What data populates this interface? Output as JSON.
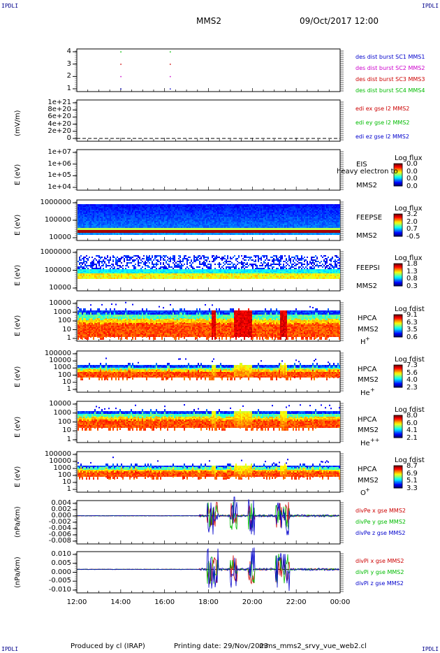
{
  "corners": {
    "tl": "IPDLI",
    "tr": "IPDLI",
    "bl": "IPDLI",
    "br": "IPDLI"
  },
  "header": {
    "spacecraft": "MMS2",
    "date": "09/Oct/2017 12:00"
  },
  "footer": {
    "produced": "Produced by cl (IRAP)",
    "printing": "Printing date: 29/Nov/2023",
    "file": "mms_mms2_srvy_vue_web2.cl"
  },
  "colors": {
    "red": "#cc0000",
    "green": "#00bb00",
    "blue": "#0000cc",
    "magenta": "#cc00cc"
  },
  "chart_data": [
    {
      "type": "scatter",
      "id": "des-burst",
      "x_ticks": [
        "12:00",
        "14:00",
        "16:00",
        "18:00",
        "20:00",
        "22:00",
        "00:00"
      ],
      "y_ticks": [
        "4",
        "3",
        "2",
        "1"
      ],
      "series": [
        {
          "name": "des dist burst SC1 MMS1",
          "color": "#0000cc"
        },
        {
          "name": "des dist burst SC2 MMS2",
          "color": "#cc00cc"
        },
        {
          "name": "des dist burst SC3 MMS3",
          "color": "#cc0000"
        },
        {
          "name": "des dist burst SC4 MMS4",
          "color": "#00bb00"
        }
      ],
      "points": [
        {
          "t": 14.0,
          "sc": 4
        },
        {
          "t": 14.0,
          "sc": 3
        },
        {
          "t": 14.0,
          "sc": 2
        },
        {
          "t": 14.0,
          "sc": 1
        },
        {
          "t": 16.25,
          "sc": 4
        },
        {
          "t": 16.25,
          "sc": 3
        },
        {
          "t": 16.25,
          "sc": 2
        },
        {
          "t": 16.25,
          "sc": 1
        }
      ]
    },
    {
      "type": "line",
      "id": "edi",
      "ylabel": "(mV/m)",
      "y_ticks": [
        "1e+21",
        "8e+20",
        "6e+20",
        "4e+20",
        "2e+20",
        "0"
      ],
      "series": [
        {
          "name": "edi ex gse l2 MMS2",
          "color": "#cc0000"
        },
        {
          "name": "edi ey gse l2 MMS2",
          "color": "#00bb00"
        },
        {
          "name": "edi ez gse l2 MMS2",
          "color": "#0000cc"
        }
      ]
    },
    {
      "type": "heatmap",
      "id": "eis",
      "ylabel": "E (eV)",
      "y_ticks": [
        "1e+07",
        "1e+06",
        "1e+05",
        "1e+04"
      ],
      "right_labels": [
        "EIS",
        "heavy electron to",
        "MMS2"
      ],
      "cbar": {
        "title": "Log flux",
        "ticks": [
          "0.0",
          "0.0",
          "0.0",
          "0.0"
        ]
      }
    },
    {
      "type": "heatmap",
      "id": "feepse",
      "ylabel": "E (eV)",
      "y_ticks": [
        "1000000",
        "100000",
        "10000"
      ],
      "right_labels": [
        "FEEPSE",
        "MMS2"
      ],
      "cbar": {
        "title": "Log flux",
        "ticks": [
          "3.2",
          "2.0",
          "0.7",
          "-0.5"
        ]
      }
    },
    {
      "type": "heatmap",
      "id": "feepsi",
      "ylabel": "E (eV)",
      "y_ticks": [
        "1000000",
        "100000",
        "10000"
      ],
      "right_labels": [
        "FEEPSI",
        "MMS2"
      ],
      "cbar": {
        "title": "Log flux",
        "ticks": [
          "1.8",
          "1.3",
          "0.8",
          "0.3"
        ]
      }
    },
    {
      "type": "heatmap",
      "id": "hpca-h",
      "ylabel": "E (eV)",
      "y_ticks": [
        "10000",
        "1000",
        "100",
        "10",
        "1"
      ],
      "right_labels": [
        "HPCA",
        "MMS2"
      ],
      "species": "H",
      "charge": "+",
      "cbar": {
        "title": "Log fdist",
        "ticks": [
          "9.1",
          "6.3",
          "3.5",
          "0.6"
        ]
      }
    },
    {
      "type": "heatmap",
      "id": "hpca-he",
      "ylabel": "E (eV)",
      "y_ticks": [
        "100000",
        "10000",
        "1000",
        "100",
        "10",
        "1"
      ],
      "right_labels": [
        "HPCA",
        "MMS2"
      ],
      "species": "He",
      "charge": "+",
      "cbar": {
        "title": "Log fdist",
        "ticks": [
          "7.3",
          "5.6",
          "4.0",
          "2.3"
        ]
      }
    },
    {
      "type": "heatmap",
      "id": "hpca-hepp",
      "ylabel": "E (eV)",
      "y_ticks": [
        "10000",
        "1000",
        "100",
        "10",
        "1"
      ],
      "right_labels": [
        "HPCA",
        "MMS2"
      ],
      "species": "He",
      "charge": "++",
      "cbar": {
        "title": "Log fdist",
        "ticks": [
          "8.0",
          "6.0",
          "4.1",
          "2.1"
        ]
      }
    },
    {
      "type": "heatmap",
      "id": "hpca-o",
      "ylabel": "E (eV)",
      "y_ticks": [
        "100000",
        "10000",
        "1000",
        "100",
        "10",
        "1"
      ],
      "right_labels": [
        "HPCA",
        "MMS2"
      ],
      "species": "O",
      "charge": "+",
      "cbar": {
        "title": "Log fdist",
        "ticks": [
          "8.7",
          "6.9",
          "5.1",
          "3.3"
        ]
      }
    },
    {
      "type": "line",
      "id": "divpe",
      "ylabel": "(nPa/km)",
      "y_ticks": [
        "0.004",
        "0.002",
        "0.000",
        "-0.002",
        "-0.004",
        "-0.006",
        "-0.008"
      ],
      "series": [
        {
          "name": "divPe x gse MMS2",
          "color": "#cc0000"
        },
        {
          "name": "divPe y gse MMS2",
          "color": "#00bb00"
        },
        {
          "name": "divPe z gse MMS2",
          "color": "#0000cc"
        }
      ]
    },
    {
      "type": "line",
      "id": "divpi",
      "ylabel": "(nPa/km)",
      "y_ticks": [
        "0.010",
        "0.005",
        "0.000",
        "-0.005",
        "-0.010"
      ],
      "series": [
        {
          "name": "divPi x gse MMS2",
          "color": "#cc0000"
        },
        {
          "name": "divPi y gse MMS2",
          "color": "#00bb00"
        },
        {
          "name": "divPi z gse MMS2",
          "color": "#0000cc"
        }
      ]
    }
  ]
}
